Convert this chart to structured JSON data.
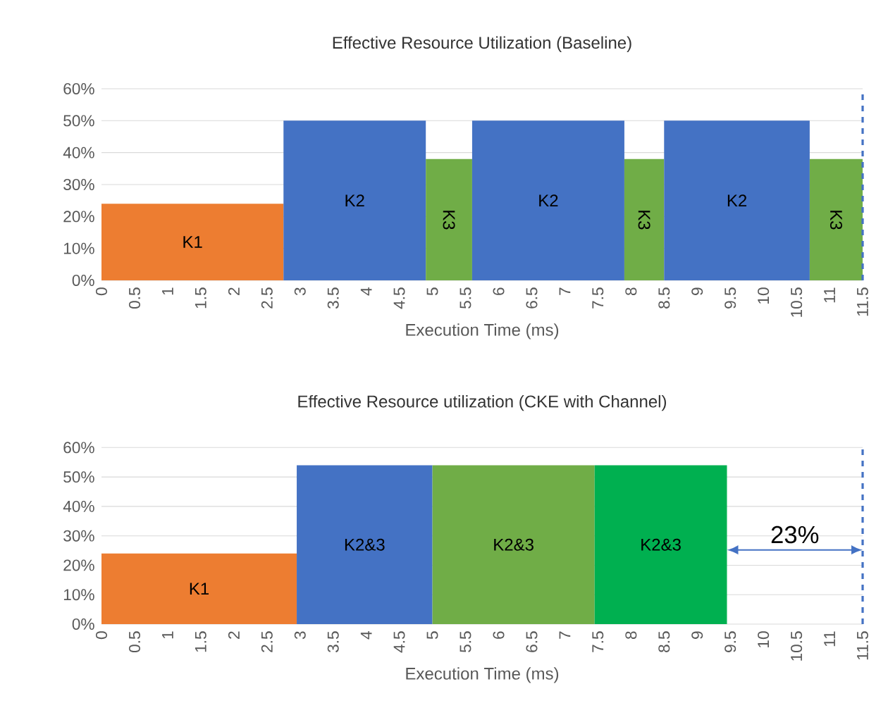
{
  "chart_data": [
    {
      "type": "area",
      "title": "Effective Resource Utilization (Baseline)",
      "xlabel": "Execution Time (ms)",
      "series": [
        {
          "name": "K1",
          "color": "#ed7d31",
          "x": [
            0,
            2.75
          ],
          "values": [
            24,
            24
          ]
        },
        {
          "name": "K2",
          "color": "#4472c4",
          "x": [
            2.75,
            4.9
          ],
          "values": [
            50,
            50
          ]
        },
        {
          "name": "K3",
          "color": "#70ad47",
          "x": [
            4.9,
            5.6
          ],
          "values": [
            38,
            38
          ]
        },
        {
          "name": "K2",
          "color": "#4472c4",
          "x": [
            5.6,
            7.9
          ],
          "values": [
            50,
            50
          ]
        },
        {
          "name": "K3",
          "color": "#70ad47",
          "x": [
            7.9,
            8.5
          ],
          "values": [
            38,
            38
          ]
        },
        {
          "name": "K2",
          "color": "#4472c4",
          "x": [
            8.5,
            10.7
          ],
          "values": [
            50,
            50
          ]
        },
        {
          "name": "K3",
          "color": "#70ad47",
          "x": [
            10.7,
            11.5
          ],
          "values": [
            38,
            38
          ]
        }
      ],
      "ref_lines": [
        {
          "axis": "x",
          "value": 11.5,
          "color": "#4472c4",
          "line_style": "dashed"
        }
      ],
      "xlim": [
        0,
        11.5
      ],
      "xticks": [
        0,
        0.5,
        1,
        1.5,
        2,
        2.5,
        3,
        3.5,
        4,
        4.5,
        5,
        5.5,
        6,
        6.5,
        7,
        7.5,
        8,
        8.5,
        9,
        9.5,
        10,
        10.5,
        11,
        11.5
      ],
      "ylim": [
        0,
        60
      ],
      "yticks": [
        {
          "value": 0,
          "label": "0%"
        },
        {
          "value": 10,
          "label": "10%"
        },
        {
          "value": 20,
          "label": "20%"
        },
        {
          "value": 30,
          "label": "30%"
        },
        {
          "value": 40,
          "label": "40%"
        },
        {
          "value": 50,
          "label": "50%"
        },
        {
          "value": 60,
          "label": "60%"
        }
      ],
      "grid": "y"
    },
    {
      "type": "area",
      "title": "Effective Resource utilization (CKE with Channel)",
      "xlabel": "Execution Time (ms)",
      "series": [
        {
          "name": "K1",
          "color": "#ed7d31",
          "x": [
            0,
            2.95
          ],
          "values": [
            24,
            24
          ]
        },
        {
          "name": "K2&3",
          "color": "#4472c4",
          "x": [
            2.95,
            5.0
          ],
          "values": [
            54,
            54
          ]
        },
        {
          "name": "K2&3",
          "color": "#70ad47",
          "x": [
            5.0,
            7.45
          ],
          "values": [
            54,
            54
          ]
        },
        {
          "name": "K2&3",
          "color": "#00b050",
          "x": [
            7.45,
            9.45
          ],
          "values": [
            54,
            54
          ]
        }
      ],
      "annotations": [
        "23%"
      ],
      "ref_lines": [
        {
          "axis": "x",
          "value": 11.5,
          "color": "#4472c4",
          "line_style": "dashed"
        }
      ],
      "xlim": [
        0,
        11.5
      ],
      "xticks": [
        0,
        0.5,
        1,
        1.5,
        2,
        2.5,
        3,
        3.5,
        4,
        4.5,
        5,
        5.5,
        6,
        6.5,
        7,
        7.5,
        8,
        8.5,
        9,
        9.5,
        10,
        10.5,
        11,
        11.5
      ],
      "ylim": [
        0,
        60
      ],
      "yticks": [
        {
          "value": 0,
          "label": "0%"
        },
        {
          "value": 10,
          "label": "10%"
        },
        {
          "value": 20,
          "label": "20%"
        },
        {
          "value": 30,
          "label": "30%"
        },
        {
          "value": 40,
          "label": "40%"
        },
        {
          "value": 50,
          "label": "50%"
        },
        {
          "value": 60,
          "label": "60%"
        }
      ],
      "grid": "y"
    }
  ]
}
